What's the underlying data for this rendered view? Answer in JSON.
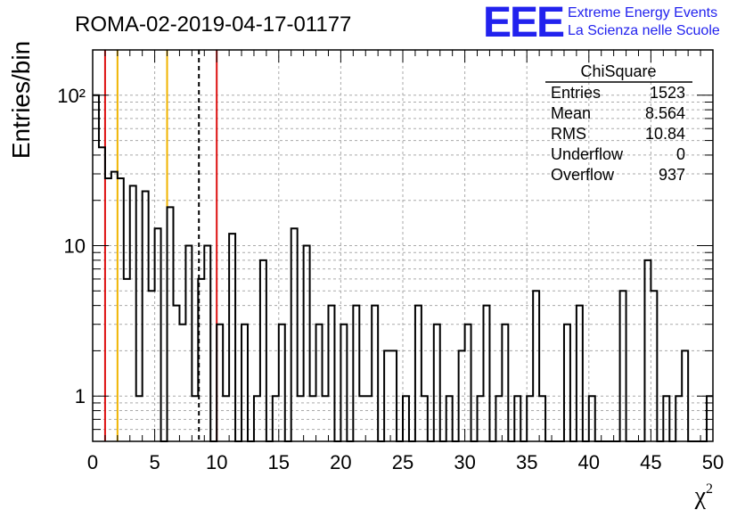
{
  "header": {
    "run_title": "ROMA-02-2019-04-17-01177",
    "logo_text": "EEE",
    "logo_line1": "Extreme Energy Events",
    "logo_line2": "La Scienza nelle Scuole"
  },
  "stats": {
    "title": "ChiSquare",
    "rows": [
      {
        "label": "Entries",
        "value": "1523"
      },
      {
        "label": "Mean",
        "value": "8.564"
      },
      {
        "label": "RMS",
        "value": "10.84"
      },
      {
        "label": "Underflow",
        "value": "0"
      },
      {
        "label": "Overflow",
        "value": "937"
      }
    ]
  },
  "chart_data": {
    "type": "histogram",
    "title": "ROMA-02-2019-04-17-01177",
    "xlabel": "χ²",
    "ylabel": "Entries/bin",
    "xlim": [
      0,
      50
    ],
    "ylim": [
      0.5,
      200
    ],
    "yscale": "log",
    "grid": true,
    "bin_width": 0.5,
    "x_ticks": [
      0,
      5,
      10,
      15,
      20,
      25,
      30,
      35,
      40,
      45,
      50
    ],
    "y_ticks": [
      {
        "value": 1,
        "label": "1"
      },
      {
        "value": 10,
        "label": "10"
      },
      {
        "value": 100,
        "label": "10²"
      }
    ],
    "counts": [
      100,
      45,
      28,
      31,
      28,
      6,
      25,
      1,
      23,
      5,
      13,
      0,
      18,
      4,
      3,
      10,
      1,
      6,
      10,
      0,
      3,
      1,
      12,
      0,
      3,
      0,
      1,
      8,
      0,
      1,
      3,
      0,
      13,
      1,
      10,
      1,
      3,
      1,
      4,
      0,
      3,
      0,
      4,
      1,
      1,
      4,
      0,
      2,
      2,
      0,
      1,
      0,
      4,
      1,
      0,
      3,
      0,
      1,
      0,
      2,
      3,
      0,
      1,
      4,
      0,
      1,
      3,
      0,
      1,
      0,
      1,
      5,
      1,
      0,
      0,
      0,
      3,
      0,
      4,
      0,
      1,
      0,
      0,
      0,
      0,
      5,
      0,
      0,
      0,
      8,
      5,
      0,
      1,
      0,
      1,
      2,
      0,
      0,
      0,
      1
    ],
    "vertical_lines": [
      {
        "x": 1.0,
        "color": "#dd1111",
        "style": "solid"
      },
      {
        "x": 2.0,
        "color": "#f0b400",
        "style": "solid"
      },
      {
        "x": 6.0,
        "color": "#f0b400",
        "style": "solid"
      },
      {
        "x": 8.564,
        "color": "#000000",
        "style": "dashed"
      },
      {
        "x": 10.0,
        "color": "#dd1111",
        "style": "solid"
      }
    ]
  }
}
